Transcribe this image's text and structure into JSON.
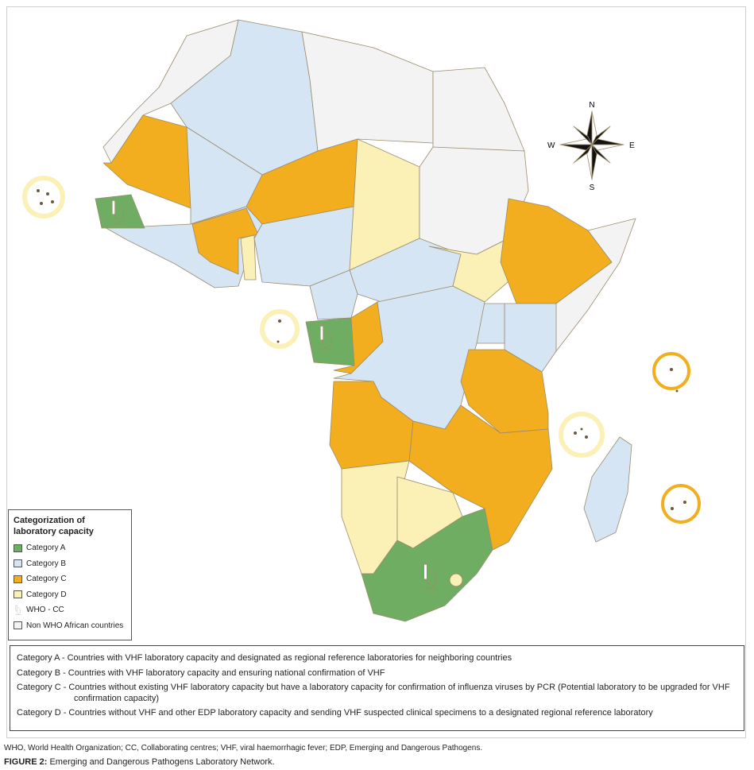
{
  "legend": {
    "title": "Categorization of laboratory capacity",
    "items": [
      {
        "label": "Category A",
        "color": "#6fae62"
      },
      {
        "label": "Category B",
        "color": "#d5e5f3"
      },
      {
        "label": "Category C",
        "color": "#f2ae1e"
      },
      {
        "label": "Category D",
        "color": "#fbf1b6"
      },
      {
        "label": "WHO - CC"
      },
      {
        "label": "Non WHO African countries",
        "color": "#f3f3f3"
      }
    ]
  },
  "compass": {
    "north": "N",
    "south": "S",
    "east": "E",
    "west": "W"
  },
  "descriptions": [
    "Category A - Countries with VHF laboratory capacity and designated as regional reference laboratories for neighboring countries",
    "Category B - Countries with VHF laboratory capacity and ensuring national confirmation of VHF",
    "Category C - Countries without existing VHF laboratory capacity but have a laboratory capacity for confirmation of influenza viruses by PCR (Potential laboratory to be upgraded for VHF confirmation capacity)",
    "Category D - Countries without VHF and other EDP laboratory capacity and sending VHF suspected clinical specimens to a designated regional reference laboratory"
  ],
  "footnote": "WHO, World Health Organization; CC, Collaborating centres; VHF, viral haemorrhagic fever; EDP, Emerging and Dangerous Pathogens.",
  "caption": {
    "label": "FIGURE 2:",
    "text": "Emerging and Dangerous Pathogens Laboratory Network."
  }
}
